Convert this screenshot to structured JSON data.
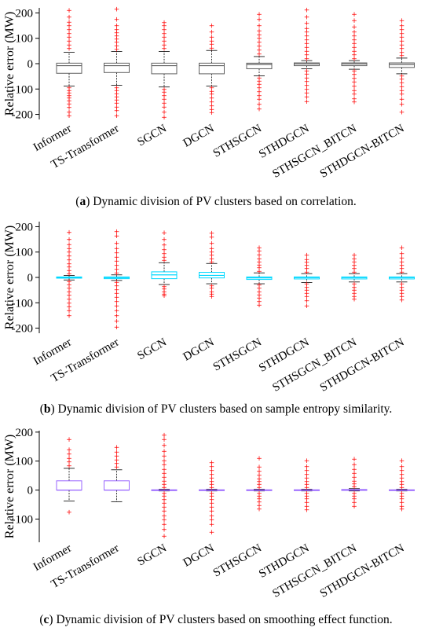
{
  "chart_data": [
    {
      "type": "box",
      "panel_label": "a",
      "caption": "Dynamic division of PV clusters based on correlation.",
      "ylabel": "Relative error (MW)",
      "ylim": [
        -220,
        220
      ],
      "yticks": [
        -200,
        -100,
        0,
        100,
        200
      ],
      "categories": [
        "Informer",
        "TS-Transformer",
        "SGCN",
        "DGCN",
        "STHSGCN",
        "STHDGCN",
        "STHSGCN_BITCN",
        "STHDGCN-BITCN"
      ],
      "box_color": "#606060",
      "median_color": "#606060",
      "outlier_color": "#ff0000",
      "boxes": [
        {
          "whisker_low": -88,
          "q1": -38,
          "median": -8,
          "q3": 2,
          "whisker_high": 45,
          "outliers_high": [
            60,
            75,
            90,
            105,
            120,
            135,
            150,
            165,
            185,
            210
          ],
          "outliers_low": [
            -95,
            -105,
            -115,
            -125,
            -135,
            -145,
            -158,
            -172,
            -190,
            -205
          ]
        },
        {
          "whisker_low": -85,
          "q1": -35,
          "median": -8,
          "q3": 2,
          "whisker_high": 48,
          "outliers_high": [
            58,
            72,
            85,
            98,
            110,
            122,
            135,
            150,
            175,
            215
          ],
          "outliers_low": [
            -95,
            -105,
            -118,
            -130,
            -142,
            -155,
            -170,
            -185,
            -205
          ]
        },
        {
          "whisker_low": -92,
          "q1": -40,
          "median": -8,
          "q3": 2,
          "whisker_high": 48,
          "outliers_high": [
            60,
            75,
            90,
            105,
            120,
            135,
            150,
            162
          ],
          "outliers_low": [
            -100,
            -112,
            -125,
            -140,
            -155,
            -170,
            -190,
            -210
          ]
        },
        {
          "whisker_low": -88,
          "q1": -40,
          "median": -8,
          "q3": 2,
          "whisker_high": 52,
          "outliers_high": [
            62,
            78,
            90,
            105,
            125,
            150
          ],
          "outliers_low": [
            -95,
            -108,
            -120,
            -135,
            -150,
            -165,
            -180,
            -192
          ]
        },
        {
          "whisker_low": -48,
          "q1": -20,
          "median": -3,
          "q3": 2,
          "whisker_high": 28,
          "outliers_high": [
            38,
            55,
            70,
            85,
            100,
            115,
            130,
            150,
            175,
            195
          ],
          "outliers_low": [
            -55,
            -68,
            -80,
            -95,
            -110,
            -125,
            -140,
            -160,
            -178
          ]
        },
        {
          "whisker_low": -20,
          "q1": -8,
          "median": -1,
          "q3": 3,
          "whisker_high": 12,
          "outliers_high": [
            20,
            35,
            50,
            65,
            80,
            95,
            110,
            125,
            140,
            160,
            185,
            212
          ],
          "outliers_low": [
            -28,
            -40,
            -55,
            -70,
            -85,
            -100,
            -115,
            -130,
            -148
          ]
        },
        {
          "whisker_low": -22,
          "q1": -8,
          "median": -1,
          "q3": 3,
          "whisker_high": 12,
          "outliers_high": [
            20,
            35,
            50,
            65,
            80,
            95,
            110,
            125,
            145,
            170,
            195
          ],
          "outliers_low": [
            -28,
            -42,
            -58,
            -72,
            -88,
            -105,
            -120,
            -138,
            -150
          ]
        },
        {
          "whisker_low": -40,
          "q1": -15,
          "median": -3,
          "q3": 3,
          "whisker_high": 22,
          "outliers_high": [
            32,
            45,
            60,
            75,
            90,
            105,
            120,
            135,
            150,
            170
          ],
          "outliers_low": [
            -48,
            -60,
            -75,
            -90,
            -105,
            -120,
            -140,
            -160,
            -190
          ]
        }
      ]
    },
    {
      "type": "box",
      "panel_label": "b",
      "caption": "Dynamic division of PV clusters based on sample entropy similarity.",
      "ylabel": "Relative error (MW)",
      "ylim": [
        -220,
        220
      ],
      "yticks": [
        -200,
        -100,
        0,
        100,
        200
      ],
      "categories": [
        "Informer",
        "TS-Transformer",
        "SGCN",
        "DGCN",
        "STHSGCN",
        "STHDGCN",
        "STHSGCN_BITCN",
        "STHDGCN-BITCN"
      ],
      "box_color": "#00d8ff",
      "median_color": "#00d8ff",
      "outlier_color": "#ff0000",
      "boxes": [
        {
          "whisker_low": -10,
          "q1": -3,
          "median": 0,
          "q3": 2,
          "whisker_high": 8,
          "outliers_high": [
            15,
            28,
            42,
            55,
            70,
            85,
            100,
            115,
            130,
            150,
            178
          ],
          "outliers_low": [
            -15,
            -28,
            -42,
            -55,
            -70,
            -85,
            -100,
            -115,
            -130,
            -150
          ]
        },
        {
          "whisker_low": -12,
          "q1": -5,
          "median": -1,
          "q3": 2,
          "whisker_high": 10,
          "outliers_high": [
            18,
            32,
            48,
            65,
            80,
            98,
            115,
            135,
            165,
            182
          ],
          "outliers_low": [
            -18,
            -32,
            -48,
            -62,
            -78,
            -95,
            -112,
            -130,
            -150,
            -172,
            -195
          ]
        },
        {
          "whisker_low": -28,
          "q1": -5,
          "median": 10,
          "q3": 22,
          "whisker_high": 58,
          "outliers_high": [
            68,
            80,
            95,
            110,
            128,
            150,
            176
          ],
          "outliers_low": [
            -35,
            -45,
            -55,
            -65,
            -72
          ]
        },
        {
          "whisker_low": -25,
          "q1": -2,
          "median": 8,
          "q3": 20,
          "whisker_high": 55,
          "outliers_high": [
            62,
            75,
            88,
            100,
            115,
            135,
            160,
            175
          ],
          "outliers_low": [
            -32,
            -42,
            -55,
            -65,
            -75
          ]
        },
        {
          "whisker_low": -25,
          "q1": -8,
          "median": -2,
          "q3": 2,
          "whisker_high": 18,
          "outliers_high": [
            25,
            38,
            50,
            62,
            75,
            90,
            105,
            118
          ],
          "outliers_low": [
            -30,
            -42,
            -55,
            -68,
            -80,
            -95,
            -108
          ]
        },
        {
          "whisker_low": -20,
          "q1": -6,
          "median": -1,
          "q3": 2,
          "whisker_high": 15,
          "outliers_high": [
            22,
            35,
            48,
            60,
            72,
            88
          ],
          "outliers_low": [
            -25,
            -38,
            -50,
            -62,
            -75,
            -92,
            -112
          ]
        },
        {
          "whisker_low": -18,
          "q1": -6,
          "median": -1,
          "q3": 2,
          "whisker_high": 15,
          "outliers_high": [
            22,
            35,
            48,
            62,
            75,
            88
          ],
          "outliers_low": [
            -25,
            -38,
            -50,
            -62,
            -75,
            -85
          ]
        },
        {
          "whisker_low": -18,
          "q1": -6,
          "median": -1,
          "q3": 2,
          "whisker_high": 15,
          "outliers_high": [
            22,
            35,
            48,
            62,
            78,
            95,
            118
          ],
          "outliers_low": [
            -25,
            -38,
            -50,
            -62,
            -75,
            -88
          ]
        }
      ]
    },
    {
      "type": "box",
      "panel_label": "c",
      "caption": "Dynamic division of PV clusters based on smoothing effect function.",
      "ylabel": "Relative error (MW)",
      "ylim": [
        -180,
        205
      ],
      "yticks": [
        -100,
        0,
        100,
        200
      ],
      "categories": [
        "Informer",
        "TS-Transformer",
        "SGCN",
        "DGCN",
        "STHSGCN",
        "STHDGCN",
        "STHSGCN_BITCN",
        "STHDGCN-BITCN"
      ],
      "box_color": "#9966ff",
      "median_color": "#9966ff",
      "outlier_color": "#ff0000",
      "boxes": [
        {
          "whisker_low": -38,
          "q1": 0,
          "median": 0,
          "q3": 32,
          "whisker_high": 75,
          "outliers_high": [
            85,
            98,
            110,
            125,
            140,
            175
          ],
          "outliers_low": [
            -75
          ]
        },
        {
          "whisker_low": -40,
          "q1": 0,
          "median": 0,
          "q3": 32,
          "whisker_high": 70,
          "outliers_high": [
            80,
            92,
            105,
            118,
            132,
            148
          ]
        },
        {
          "whisker_low": -3,
          "q1": -1,
          "median": 0,
          "q3": 1,
          "whisker_high": 3,
          "outliers_high": [
            10,
            20,
            32,
            45,
            58,
            72,
            88,
            102,
            118,
            135,
            155,
            175,
            190
          ],
          "outliers_low": [
            -10,
            -20,
            -32,
            -45,
            -58,
            -72,
            -88,
            -102,
            -118,
            -135,
            -158
          ]
        },
        {
          "whisker_low": -3,
          "q1": -1,
          "median": 0,
          "q3": 1,
          "whisker_high": 3,
          "outliers_high": [
            10,
            20,
            30,
            42,
            55,
            68,
            82,
            95
          ],
          "outliers_low": [
            -10,
            -20,
            -32,
            -45,
            -58,
            -72,
            -88,
            -102,
            -118,
            -145
          ]
        },
        {
          "whisker_low": -3,
          "q1": -1,
          "median": 0,
          "q3": 1,
          "whisker_high": 3,
          "outliers_high": [
            10,
            20,
            30,
            40,
            52,
            65,
            80,
            110
          ],
          "outliers_low": [
            -10,
            -20,
            -30,
            -40,
            -52,
            -65
          ]
        },
        {
          "whisker_low": -3,
          "q1": -1,
          "median": 0,
          "q3": 1,
          "whisker_high": 3,
          "outliers_high": [
            10,
            20,
            30,
            42,
            55,
            68,
            82,
            102
          ],
          "outliers_low": [
            -10,
            -20,
            -30,
            -42,
            -55,
            -68
          ]
        },
        {
          "whisker_low": -3,
          "q1": -1,
          "median": 1,
          "q3": 2,
          "whisker_high": 5,
          "outliers_high": [
            12,
            22,
            32,
            45,
            58,
            72,
            88,
            108
          ],
          "outliers_low": [
            -10,
            -20,
            -30,
            -42,
            -55
          ]
        },
        {
          "whisker_low": -3,
          "q1": -1,
          "median": 0,
          "q3": 1,
          "whisker_high": 3,
          "outliers_high": [
            10,
            20,
            30,
            42,
            55,
            68,
            82,
            102
          ],
          "outliers_low": [
            -10,
            -20,
            -30,
            -42,
            -55,
            -65
          ]
        }
      ]
    }
  ]
}
